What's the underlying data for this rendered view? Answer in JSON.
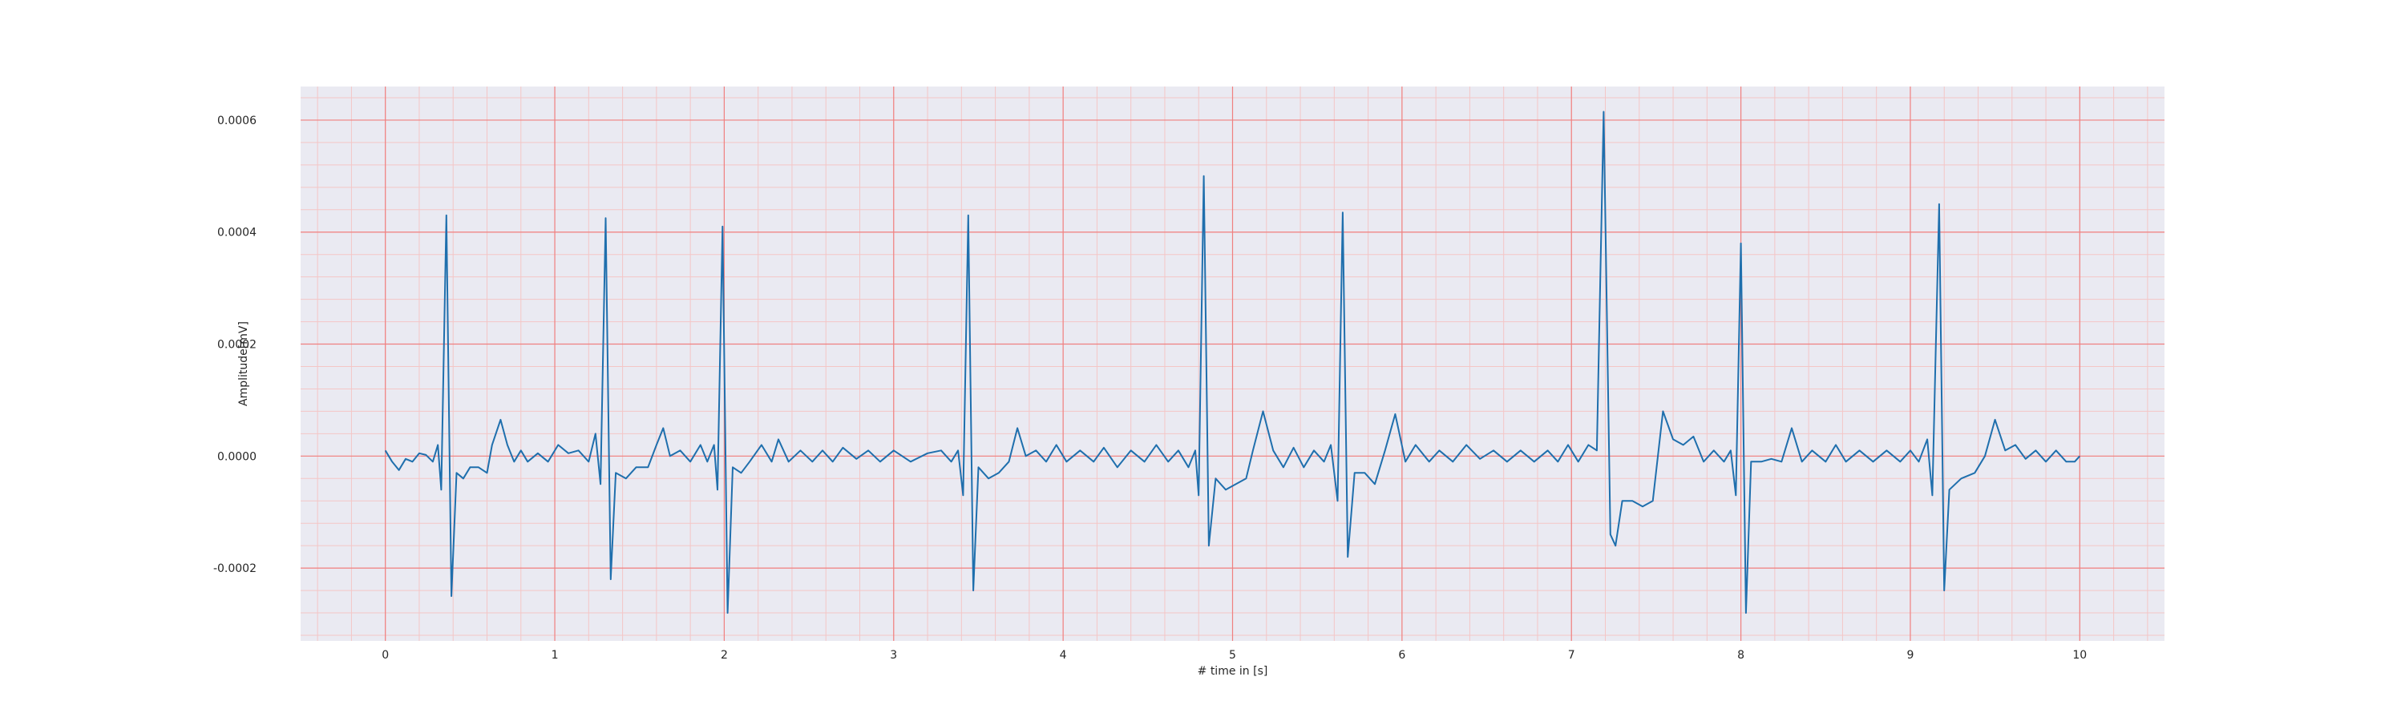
{
  "chart_data": {
    "type": "line",
    "title": "",
    "xlabel": "# time in [s]",
    "ylabel": "Amplitude[mV]",
    "xlim": [
      -0.5,
      10.5
    ],
    "ylim": [
      -0.00033,
      0.00066
    ],
    "x_ticks": [
      0,
      1,
      2,
      3,
      4,
      5,
      6,
      7,
      8,
      9,
      10
    ],
    "x_tick_labels": [
      "0",
      "1",
      "2",
      "3",
      "4",
      "5",
      "6",
      "7",
      "8",
      "9",
      "10"
    ],
    "y_ticks": [
      -0.0002,
      0,
      0.0002,
      0.0004,
      0.0006
    ],
    "y_tick_labels": [
      "-0.0002",
      "0.0000",
      "0.0002",
      "0.0004",
      "0.0006"
    ],
    "grid": {
      "major": true,
      "minor": true,
      "major_color": "#f08080",
      "minor_color": "#f4c6c6"
    },
    "colors": {
      "plot_background": "#eaeaf2",
      "line": "#1f6fad"
    },
    "series": [
      {
        "values": [
          [
            0,
            1e-05
          ],
          [
            0.04,
            -1e-05
          ],
          [
            0.08,
            -2.5e-05
          ],
          [
            0.12,
            -5e-06
          ],
          [
            0.16,
            -1e-05
          ],
          [
            0.2,
            5e-06
          ],
          [
            0.24,
            2e-06
          ],
          [
            0.28,
            -1e-05
          ],
          [
            0.31,
            2e-05
          ],
          [
            0.33,
            -6e-05
          ],
          [
            0.36,
            0.00043
          ],
          [
            0.39,
            -0.00025
          ],
          [
            0.42,
            -3e-05
          ],
          [
            0.46,
            -4e-05
          ],
          [
            0.5,
            -2e-05
          ],
          [
            0.55,
            -2e-05
          ],
          [
            0.6,
            -3e-05
          ],
          [
            0.63,
            2e-05
          ],
          [
            0.68,
            6.5e-05
          ],
          [
            0.72,
            2e-05
          ],
          [
            0.76,
            -1e-05
          ],
          [
            0.8,
            1e-05
          ],
          [
            0.84,
            -1e-05
          ],
          [
            0.9,
            5e-06
          ],
          [
            0.96,
            -1e-05
          ],
          [
            1.02,
            2e-05
          ],
          [
            1.08,
            5e-06
          ],
          [
            1.14,
            1e-05
          ],
          [
            1.2,
            -1e-05
          ],
          [
            1.24,
            4e-05
          ],
          [
            1.27,
            -5e-05
          ],
          [
            1.3,
            0.000425
          ],
          [
            1.33,
            -0.00022
          ],
          [
            1.36,
            -3e-05
          ],
          [
            1.42,
            -4e-05
          ],
          [
            1.48,
            -2e-05
          ],
          [
            1.55,
            -2e-05
          ],
          [
            1.6,
            2e-05
          ],
          [
            1.64,
            5e-05
          ],
          [
            1.68,
            0.0
          ],
          [
            1.74,
            1e-05
          ],
          [
            1.8,
            -1e-05
          ],
          [
            1.86,
            2e-05
          ],
          [
            1.9,
            -1e-05
          ],
          [
            1.94,
            2e-05
          ],
          [
            1.96,
            -6e-05
          ],
          [
            1.99,
            0.00041
          ],
          [
            2.02,
            -0.00028
          ],
          [
            2.05,
            -2e-05
          ],
          [
            2.1,
            -3e-05
          ],
          [
            2.15,
            -1e-05
          ],
          [
            2.22,
            2e-05
          ],
          [
            2.28,
            -1e-05
          ],
          [
            2.32,
            3e-05
          ],
          [
            2.38,
            -1e-05
          ],
          [
            2.45,
            1e-05
          ],
          [
            2.52,
            -1e-05
          ],
          [
            2.58,
            1e-05
          ],
          [
            2.64,
            -1e-05
          ],
          [
            2.7,
            1.5e-05
          ],
          [
            2.78,
            -5e-06
          ],
          [
            2.85,
            1e-05
          ],
          [
            2.92,
            -1e-05
          ],
          [
            3.0,
            1e-05
          ],
          [
            3.1,
            -1e-05
          ],
          [
            3.2,
            5e-06
          ],
          [
            3.28,
            1e-05
          ],
          [
            3.34,
            -1e-05
          ],
          [
            3.38,
            1e-05
          ],
          [
            3.41,
            -7e-05
          ],
          [
            3.44,
            0.00043
          ],
          [
            3.47,
            -0.00024
          ],
          [
            3.5,
            -2e-05
          ],
          [
            3.56,
            -4e-05
          ],
          [
            3.62,
            -3e-05
          ],
          [
            3.68,
            -1e-05
          ],
          [
            3.73,
            5e-05
          ],
          [
            3.78,
            0.0
          ],
          [
            3.84,
            1e-05
          ],
          [
            3.9,
            -1e-05
          ],
          [
            3.96,
            2e-05
          ],
          [
            4.02,
            -1e-05
          ],
          [
            4.1,
            1e-05
          ],
          [
            4.18,
            -1e-05
          ],
          [
            4.24,
            1.5e-05
          ],
          [
            4.32,
            -2e-05
          ],
          [
            4.4,
            1e-05
          ],
          [
            4.48,
            -1e-05
          ],
          [
            4.55,
            2e-05
          ],
          [
            4.62,
            -1e-05
          ],
          [
            4.68,
            1e-05
          ],
          [
            4.74,
            -2e-05
          ],
          [
            4.78,
            1e-05
          ],
          [
            4.8,
            -7e-05
          ],
          [
            4.83,
            0.0005
          ],
          [
            4.86,
            -0.00016
          ],
          [
            4.9,
            -4e-05
          ],
          [
            4.96,
            -6e-05
          ],
          [
            5.02,
            -5e-05
          ],
          [
            5.08,
            -4e-05
          ],
          [
            5.12,
            1e-05
          ],
          [
            5.18,
            8e-05
          ],
          [
            5.24,
            1e-05
          ],
          [
            5.3,
            -2e-05
          ],
          [
            5.36,
            1.5e-05
          ],
          [
            5.42,
            -2e-05
          ],
          [
            5.48,
            1e-05
          ],
          [
            5.54,
            -1e-05
          ],
          [
            5.58,
            2e-05
          ],
          [
            5.62,
            -8e-05
          ],
          [
            5.65,
            0.000435
          ],
          [
            5.68,
            -0.00018
          ],
          [
            5.72,
            -3e-05
          ],
          [
            5.78,
            -3e-05
          ],
          [
            5.84,
            -5e-05
          ],
          [
            5.9,
            1e-05
          ],
          [
            5.96,
            7.5e-05
          ],
          [
            6.02,
            -1e-05
          ],
          [
            6.08,
            2e-05
          ],
          [
            6.16,
            -1e-05
          ],
          [
            6.22,
            1e-05
          ],
          [
            6.3,
            -1e-05
          ],
          [
            6.38,
            2e-05
          ],
          [
            6.46,
            -5e-06
          ],
          [
            6.54,
            1e-05
          ],
          [
            6.62,
            -1e-05
          ],
          [
            6.7,
            1e-05
          ],
          [
            6.78,
            -1e-05
          ],
          [
            6.86,
            1e-05
          ],
          [
            6.92,
            -1e-05
          ],
          [
            6.98,
            2e-05
          ],
          [
            7.04,
            -1e-05
          ],
          [
            7.1,
            2e-05
          ],
          [
            7.15,
            1e-05
          ],
          [
            7.19,
            0.000615
          ],
          [
            7.23,
            -0.00014
          ],
          [
            7.26,
            -0.00016
          ],
          [
            7.3,
            -8e-05
          ],
          [
            7.36,
            -8e-05
          ],
          [
            7.42,
            -9e-05
          ],
          [
            7.48,
            -8e-05
          ],
          [
            7.54,
            8e-05
          ],
          [
            7.6,
            3e-05
          ],
          [
            7.66,
            2e-05
          ],
          [
            7.72,
            3.5e-05
          ],
          [
            7.78,
            -1e-05
          ],
          [
            7.84,
            1e-05
          ],
          [
            7.9,
            -1e-05
          ],
          [
            7.94,
            1e-05
          ],
          [
            7.97,
            -7e-05
          ],
          [
            8.0,
            0.00038
          ],
          [
            8.03,
            -0.00028
          ],
          [
            8.06,
            -1e-05
          ],
          [
            8.12,
            -1e-05
          ],
          [
            8.18,
            -5e-06
          ],
          [
            8.24,
            -1e-05
          ],
          [
            8.3,
            5e-05
          ],
          [
            8.36,
            -1e-05
          ],
          [
            8.42,
            1e-05
          ],
          [
            8.5,
            -1e-05
          ],
          [
            8.56,
            2e-05
          ],
          [
            8.62,
            -1e-05
          ],
          [
            8.7,
            1e-05
          ],
          [
            8.78,
            -1e-05
          ],
          [
            8.86,
            1e-05
          ],
          [
            8.94,
            -1e-05
          ],
          [
            9.0,
            1e-05
          ],
          [
            9.05,
            -1e-05
          ],
          [
            9.1,
            3e-05
          ],
          [
            9.13,
            -7e-05
          ],
          [
            9.17,
            0.00045
          ],
          [
            9.2,
            -0.00024
          ],
          [
            9.23,
            -6e-05
          ],
          [
            9.3,
            -4e-05
          ],
          [
            9.38,
            -3e-05
          ],
          [
            9.44,
            0.0
          ],
          [
            9.5,
            6.5e-05
          ],
          [
            9.56,
            1e-05
          ],
          [
            9.62,
            2e-05
          ],
          [
            9.68,
            -5e-06
          ],
          [
            9.74,
            1e-05
          ],
          [
            9.8,
            -1e-05
          ],
          [
            9.86,
            1e-05
          ],
          [
            9.92,
            -1e-05
          ],
          [
            9.97,
            -1e-05
          ],
          [
            10.0,
            0.0
          ]
        ]
      }
    ]
  }
}
